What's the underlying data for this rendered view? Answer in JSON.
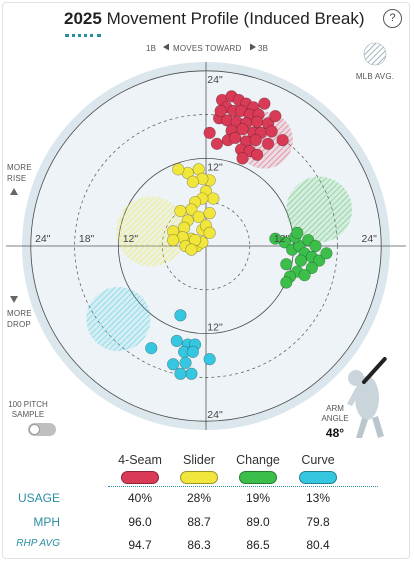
{
  "header": {
    "year": "2025",
    "title": "Movement Profile (Induced Break)",
    "help_label": "?"
  },
  "direction": {
    "left": "1B",
    "middle": "MOVES TOWARD",
    "right": "3B"
  },
  "legend_label": "MLB AVG.",
  "side_labels": {
    "rise_1": "MORE",
    "rise_2": "RISE",
    "drop_1": "MORE",
    "drop_2": "DROP"
  },
  "ring_labels": {
    "top24": "24\"",
    "top12": "12\"",
    "bot12": "12\"",
    "bot24": "24\"",
    "left24": "24\"",
    "left18": "18\"",
    "left12": "12\"",
    "right12": "12\"",
    "right24": "24\""
  },
  "sample": {
    "label_1": "100 PITCH",
    "label_2": "SAMPLE"
  },
  "arm": {
    "label_1": "ARM",
    "label_2": "ANGLE",
    "value": "48°",
    "angle_deg": 48
  },
  "table": {
    "row_labels": {
      "usage": "USAGE",
      "mph": "MPH",
      "rhp_avg": "RHP AVG"
    },
    "pitches": [
      {
        "name": "4-Seam",
        "color": "#d93b57",
        "usage": "40%",
        "mph": "96.0",
        "rhp_avg": "94.7"
      },
      {
        "name": "Slider",
        "color": "#f0e63c",
        "usage": "28%",
        "mph": "88.7",
        "rhp_avg": "86.3"
      },
      {
        "name": "Change",
        "color": "#3cbf4a",
        "usage": "19%",
        "mph": "89.0",
        "rhp_avg": "86.5"
      },
      {
        "name": "Curve",
        "color": "#35c6e0",
        "usage": "13%",
        "mph": "79.8",
        "rhp_avg": "80.4"
      }
    ]
  },
  "chart_data": {
    "type": "scatter",
    "xlim": [
      -28,
      28
    ],
    "ylim": [
      -28,
      28
    ],
    "rings": [
      6,
      12,
      18,
      24
    ],
    "mlb_avg": [
      {
        "pitch": "4-Seam",
        "x": -8.0,
        "y": 14.5,
        "r": 3.9,
        "color": "#d93b57"
      },
      {
        "pitch": "Slider",
        "x": 7.5,
        "y": 2.0,
        "r": 4.8,
        "color": "#f0e63c"
      },
      {
        "pitch": "Change",
        "x": -15.5,
        "y": 5.0,
        "r": 4.5,
        "color": "#3cbf4a"
      },
      {
        "pitch": "Curve",
        "x": 12.0,
        "y": -10.0,
        "r": 4.4,
        "color": "#35c6e0"
      }
    ],
    "series": [
      {
        "name": "4-Seam",
        "color": "#d93b57",
        "points": [
          [
            -2.2,
            20.0
          ],
          [
            -3.5,
            20.5
          ],
          [
            -4.5,
            20.0
          ],
          [
            -5.5,
            19.5
          ],
          [
            -6.5,
            19.0
          ],
          [
            -2.8,
            19.0
          ],
          [
            -3.8,
            18.5
          ],
          [
            -4.8,
            18.5
          ],
          [
            -6.0,
            18.0
          ],
          [
            -7.2,
            18.0
          ],
          [
            -1.8,
            17.5
          ],
          [
            -2.9,
            17.2
          ],
          [
            -4.2,
            17.0
          ],
          [
            -5.5,
            16.8
          ],
          [
            -7.0,
            17.0
          ],
          [
            -8.5,
            16.8
          ],
          [
            -3.5,
            15.8
          ],
          [
            -5.0,
            16.0
          ],
          [
            -6.5,
            15.5
          ],
          [
            -7.5,
            15.5
          ],
          [
            -9.0,
            15.7
          ],
          [
            -3.0,
            14.5
          ],
          [
            -4.0,
            14.8
          ],
          [
            -5.5,
            14.3
          ],
          [
            -6.8,
            14.5
          ],
          [
            -8.5,
            14.0
          ],
          [
            -10.5,
            14.5
          ],
          [
            -4.8,
            13.2
          ],
          [
            -6.0,
            13.0
          ],
          [
            -7.0,
            12.5
          ],
          [
            -5.0,
            12.0
          ],
          [
            -0.5,
            15.5
          ],
          [
            -1.5,
            14.0
          ],
          [
            -2.0,
            18.5
          ],
          [
            -8.0,
            19.5
          ],
          [
            -9.5,
            17.8
          ]
        ]
      },
      {
        "name": "Slider",
        "color": "#f0e63c",
        "points": [
          [
            1.0,
            10.5
          ],
          [
            2.5,
            10.0
          ],
          [
            3.8,
            10.5
          ],
          [
            -0.5,
            9.0
          ],
          [
            0.5,
            9.2
          ],
          [
            1.8,
            8.8
          ],
          [
            0.0,
            7.5
          ],
          [
            -1.0,
            6.5
          ],
          [
            0.5,
            6.5
          ],
          [
            1.5,
            6.0
          ],
          [
            2.0,
            5.0
          ],
          [
            3.5,
            4.8
          ],
          [
            1.0,
            4.0
          ],
          [
            -0.5,
            4.5
          ],
          [
            2.5,
            3.5
          ],
          [
            3.0,
            2.5
          ],
          [
            4.5,
            2.0
          ],
          [
            0.5,
            2.2
          ],
          [
            2.0,
            1.0
          ],
          [
            3.2,
            1.2
          ],
          [
            4.5,
            0.8
          ],
          [
            1.2,
            0.0
          ],
          [
            2.8,
            0.0
          ],
          [
            0.0,
            2.8
          ],
          [
            0.5,
            0.5
          ],
          [
            1.5,
            0.8
          ],
          [
            -0.5,
            1.8
          ],
          [
            2.0,
            -0.5
          ]
        ]
      },
      {
        "name": "Change",
        "color": "#3cbf4a",
        "points": [
          [
            -10.8,
            0.5
          ],
          [
            -11.8,
            -0.5
          ],
          [
            -12.8,
            0.0
          ],
          [
            -13.5,
            -1.0
          ],
          [
            -14.5,
            -1.5
          ],
          [
            -15.5,
            -2.0
          ],
          [
            -13.0,
            -2.0
          ],
          [
            -16.5,
            -1.0
          ],
          [
            -9.5,
            1.0
          ],
          [
            -12.2,
            1.2
          ],
          [
            -14.0,
            0.8
          ],
          [
            -15.0,
            0.0
          ],
          [
            -11.0,
            -2.5
          ],
          [
            -14.5,
            -3.0
          ],
          [
            -12.5,
            -3.5
          ],
          [
            -11.5,
            -4.2
          ],
          [
            -13.5,
            -4.0
          ],
          [
            -11.0,
            -5.0
          ],
          [
            -12.5,
            1.8
          ]
        ]
      },
      {
        "name": "Curve",
        "color": "#35c6e0",
        "points": [
          [
            3.5,
            -9.5
          ],
          [
            4.0,
            -13.0
          ],
          [
            2.5,
            -13.5
          ],
          [
            1.5,
            -13.5
          ],
          [
            3.0,
            -14.5
          ],
          [
            1.8,
            -14.5
          ],
          [
            -0.5,
            -15.5
          ],
          [
            2.8,
            -16.0
          ],
          [
            4.5,
            -16.2
          ],
          [
            2.0,
            -17.5
          ],
          [
            3.5,
            -17.5
          ],
          [
            7.5,
            -14.0
          ]
        ]
      }
    ]
  }
}
